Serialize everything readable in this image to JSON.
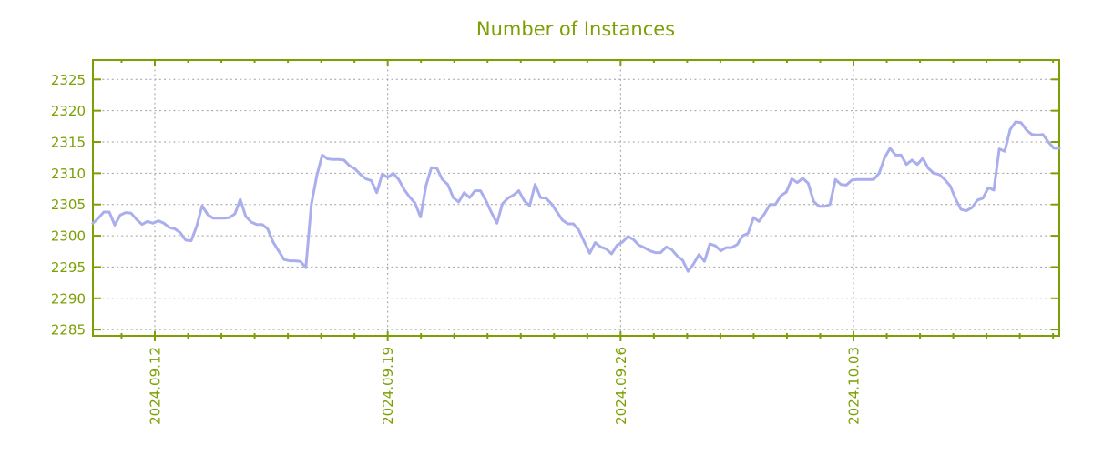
{
  "page": {
    "background_color": "#ffffff",
    "accent_color": "#7ca003",
    "grid_color": "#9e9e9e",
    "line_color": "#abaeec"
  },
  "chart_data": {
    "type": "line",
    "title": "Number of Instances",
    "legend": "none",
    "grid": "dotted",
    "x_axis": {
      "tick_labels": [
        "2024.09.12",
        "2024.09.19",
        "2024.09.26",
        "2024.10.03"
      ],
      "tick_day_offsets": [
        0,
        7,
        14,
        21
      ],
      "minor_tick_interval_days": 1,
      "range_day_offsets": [
        -1.86,
        27.19
      ]
    },
    "y_axis": {
      "ticks": [
        2285,
        2290,
        2295,
        2300,
        2305,
        2310,
        2315,
        2320,
        2325
      ],
      "range": [
        2284.0,
        2328.1
      ]
    },
    "series": [
      {
        "name": "instances",
        "x_start_day_offset": -1.86,
        "x_step_days": 0.1641,
        "approx_start": "2024-09-10",
        "values": [
          2302.0,
          2302.8,
          2303.8,
          2303.8,
          2301.7,
          2303.3,
          2303.7,
          2303.6,
          2302.6,
          2301.8,
          2302.3,
          2302.0,
          2302.4,
          2302.0,
          2301.3,
          2301.1,
          2300.5,
          2299.3,
          2299.2,
          2301.5,
          2304.8,
          2303.4,
          2302.8,
          2302.8,
          2302.8,
          2302.9,
          2303.5,
          2305.8,
          2303.1,
          2302.2,
          2301.8,
          2301.8,
          2301.1,
          2299.0,
          2297.6,
          2296.2,
          2296.0,
          2296.0,
          2295.9,
          2294.9,
          2305.0,
          2309.6,
          2312.9,
          2312.3,
          2312.2,
          2312.2,
          2312.1,
          2311.2,
          2310.7,
          2309.8,
          2309.1,
          2308.8,
          2306.9,
          2309.9,
          2309.3,
          2310.0,
          2309.0,
          2307.4,
          2306.2,
          2305.2,
          2303.0,
          2308.0,
          2310.9,
          2310.8,
          2309.0,
          2308.2,
          2306.1,
          2305.4,
          2306.9,
          2306.1,
          2307.2,
          2307.2,
          2305.6,
          2303.7,
          2302.0,
          2305.1,
          2306.0,
          2306.5,
          2307.2,
          2305.6,
          2304.8,
          2308.2,
          2306.1,
          2306.0,
          2305.1,
          2303.8,
          2302.5,
          2301.9,
          2301.9,
          2300.9,
          2299.0,
          2297.2,
          2298.9,
          2298.2,
          2297.9,
          2297.1,
          2298.5,
          2299.0,
          2299.9,
          2299.4,
          2298.5,
          2298.1,
          2297.6,
          2297.3,
          2297.3,
          2298.2,
          2297.8,
          2296.8,
          2296.1,
          2294.3,
          2295.5,
          2297.0,
          2295.9,
          2298.7,
          2298.4,
          2297.6,
          2298.1,
          2298.1,
          2298.6,
          2300.0,
          2300.4,
          2302.9,
          2302.3,
          2303.5,
          2305.0,
          2305.0,
          2306.4,
          2307.0,
          2309.1,
          2308.5,
          2309.2,
          2308.4,
          2305.5,
          2304.7,
          2304.7,
          2305.0,
          2309.0,
          2308.2,
          2308.1,
          2308.9,
          2309.0,
          2309.0,
          2309.0,
          2309.0,
          2310.0,
          2312.5,
          2314.0,
          2312.9,
          2312.9,
          2311.4,
          2312.1,
          2311.4,
          2312.4,
          2310.8,
          2310.0,
          2309.8,
          2309.0,
          2308.0,
          2305.9,
          2304.2,
          2304.0,
          2304.5,
          2305.7,
          2306.0,
          2307.7,
          2307.3,
          2313.9,
          2313.5,
          2317.0,
          2318.2,
          2318.1,
          2316.9,
          2316.2,
          2316.1,
          2316.2,
          2315.0,
          2314.0,
          2314.0
        ]
      }
    ]
  }
}
